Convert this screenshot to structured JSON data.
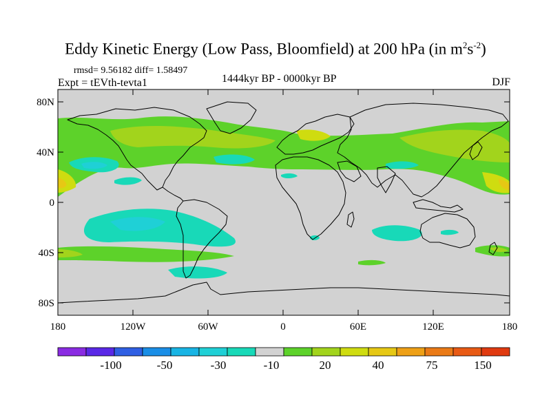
{
  "title": {
    "main": "Eddy Kinetic Energy (Low Pass, Bloomfield) at 200 hPa (in m",
    "sup1": "2",
    "mid": "s",
    "sup2": "-2",
    "end": ")"
  },
  "stats_text": "rmsd= 9.56182 diff= 1.58497",
  "experiment_text": "Expt = tEVth-tevta1",
  "period_text": "1444kyr BP - 0000kyr BP",
  "season_text": "DJF",
  "axes": {
    "lat_ticks": [
      "80N",
      "40N",
      "0",
      "40S",
      "80S"
    ],
    "lon_ticks": [
      "180",
      "120W",
      "60W",
      "0",
      "60E",
      "120E",
      "180"
    ]
  },
  "colorbar": {
    "colors": [
      "#8a2be2",
      "#5a28e6",
      "#2f5fe3",
      "#1a8ee6",
      "#18b4e4",
      "#1fd0d6",
      "#18d9b8",
      "#d2d2d2",
      "#5dd22a",
      "#a2d41c",
      "#cfdc10",
      "#e6c814",
      "#eea016",
      "#ea7a16",
      "#e85a14",
      "#e03a10"
    ],
    "labels": [
      "-100",
      "-50",
      "-30",
      "-10",
      "20",
      "40",
      "75",
      "150"
    ]
  },
  "legend_colors": {
    "neutral": "#d2d2d2",
    "positive_low": "#5dd22a",
    "positive_mid": "#a2d41c",
    "positive_high": "#cfdc10",
    "positive_top": "#e6c814",
    "negative_low": "#18d9b8",
    "negative_mid": "#1fd0d6",
    "negative_high": "#18b4e4"
  }
}
